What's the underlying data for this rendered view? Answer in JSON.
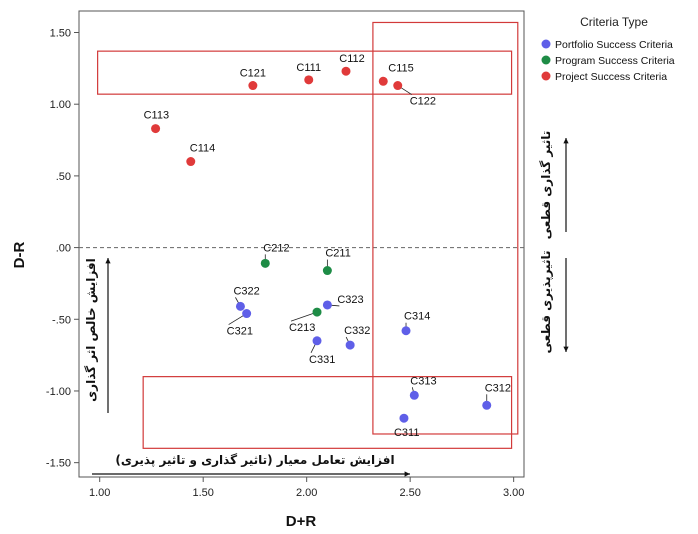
{
  "chart_data": {
    "type": "scatter",
    "title": "",
    "xlabel": "D+R",
    "ylabel": "D-R",
    "xlim": [
      0.9,
      3.05
    ],
    "ylim": [
      -1.6,
      1.65
    ],
    "x_ticks": [
      "1.00",
      "1.50",
      "2.00",
      "2.50",
      "3.00"
    ],
    "y_ticks": [
      "1.50",
      "1.00",
      ".50",
      ".00",
      "-.50",
      "-1.00",
      "-1.50"
    ],
    "grid": false,
    "reference_line_y": 0,
    "legend": {
      "title": "Criteria Type",
      "position": "top-right",
      "entries": [
        {
          "name": "Portfolio Success Criteria",
          "color": "#5f5fe8"
        },
        {
          "name": "Program Success Criteria",
          "color": "#1e8c46"
        },
        {
          "name": "Project Success Criteria",
          "color": "#e03a3a"
        }
      ]
    },
    "series": [
      {
        "name": "Portfolio Success Criteria",
        "color": "#5f5fe8",
        "points": [
          {
            "label": "C311",
            "x": 2.47,
            "y": -1.19
          },
          {
            "label": "C312",
            "x": 2.87,
            "y": -1.1
          },
          {
            "label": "C313",
            "x": 2.52,
            "y": -1.03
          },
          {
            "label": "C314",
            "x": 2.48,
            "y": -0.58
          },
          {
            "label": "C321",
            "x": 1.71,
            "y": -0.46
          },
          {
            "label": "C322",
            "x": 1.68,
            "y": -0.41
          },
          {
            "label": "C323",
            "x": 2.1,
            "y": -0.4
          },
          {
            "label": "C331",
            "x": 2.05,
            "y": -0.65
          },
          {
            "label": "C332",
            "x": 2.21,
            "y": -0.68
          }
        ]
      },
      {
        "name": "Program Success Criteria",
        "color": "#1e8c46",
        "points": [
          {
            "label": "C211",
            "x": 2.1,
            "y": -0.16
          },
          {
            "label": "C212",
            "x": 1.8,
            "y": -0.11
          },
          {
            "label": "C213",
            "x": 2.05,
            "y": -0.45
          }
        ]
      },
      {
        "name": "Project Success Criteria",
        "color": "#e03a3a",
        "points": [
          {
            "label": "C111",
            "x": 2.01,
            "y": 1.17
          },
          {
            "label": "C112",
            "x": 2.19,
            "y": 1.23
          },
          {
            "label": "C113",
            "x": 1.27,
            "y": 0.83
          },
          {
            "label": "C114",
            "x": 1.44,
            "y": 0.6
          },
          {
            "label": "C115",
            "x": 2.37,
            "y": 1.16
          },
          {
            "label": "C121",
            "x": 1.74,
            "y": 1.13
          },
          {
            "label": "C122",
            "x": 2.44,
            "y": 1.13
          }
        ]
      }
    ],
    "annotations": {
      "right_top": "تاثیر گذاری قطعی",
      "right_bottom": "تاثیرپذیری قطعی",
      "left_vertical": "افزایش خالص اثر گذاری",
      "bottom_horizontal": "افزایش تعامل معیار (تاثیر گذاری و تاثیر پذیری)"
    }
  }
}
